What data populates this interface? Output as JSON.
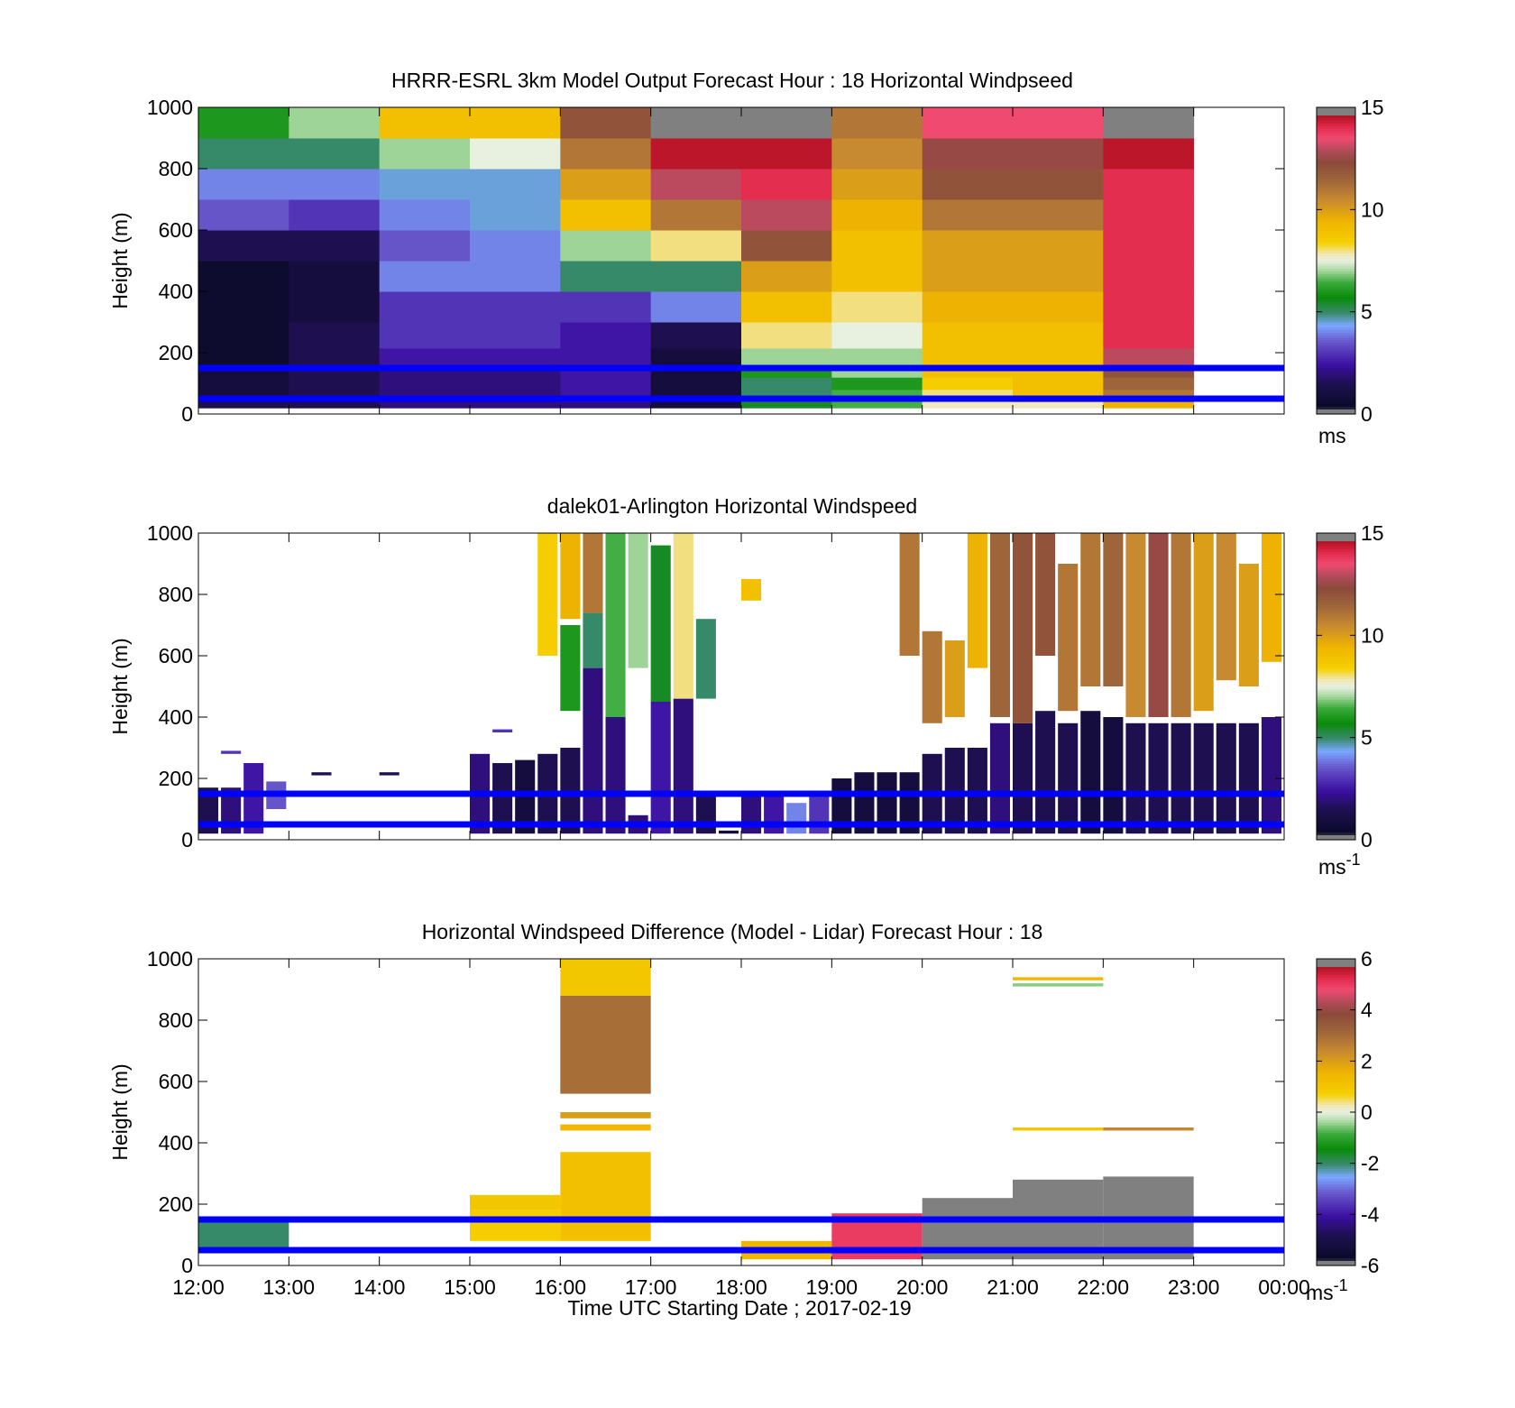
{
  "figure": {
    "xlabel": "Time UTC  Starting Date ; 2017-02-19",
    "x_tick_labels": [
      "12:00",
      "13:00",
      "14:00",
      "15:00",
      "16:00",
      "17:00",
      "18:00",
      "19:00",
      "20:00",
      "21:00",
      "22:00",
      "23:00",
      "00:00"
    ]
  },
  "colors": {
    "reference_lines": "#0000ff"
  },
  "chart_data": [
    {
      "type": "heatmap",
      "title": "HRRR-ESRL 3km Model Output   Forecast Hour : 18 Horizontal Windpseed",
      "ylabel": "Height (m)",
      "ylim": [
        0,
        1000
      ],
      "y_ticks": [
        0,
        200,
        400,
        600,
        800,
        1000
      ],
      "colorbar": {
        "range": [
          0,
          15
        ],
        "ticks": [
          0,
          5,
          10,
          15
        ],
        "unit": "ms"
      },
      "reference_lines_m": [
        50,
        150
      ],
      "hours": [
        "12:00",
        "13:00",
        "14:00",
        "15:00",
        "16:00",
        "17:00",
        "18:00",
        "19:00",
        "20:00",
        "21:00",
        "22:00"
      ],
      "heights_m": [
        20,
        60,
        100,
        140,
        180,
        250,
        350,
        450,
        550,
        650,
        750,
        850,
        950
      ],
      "values_ms": [
        [
          1.5,
          1.5,
          2.0,
          2.0,
          2.0,
          1.0,
          5.5,
          6.5,
          7.8,
          7.8,
          9.5
        ],
        [
          1.0,
          1.5,
          2.0,
          2.0,
          2.5,
          1.0,
          5.0,
          6.5,
          8.0,
          9.0,
          11.0
        ],
        [
          1.0,
          1.5,
          2.0,
          2.0,
          2.5,
          1.0,
          5.0,
          6.0,
          8.5,
          9.0,
          11.5
        ],
        [
          1.0,
          1.5,
          2.0,
          2.0,
          2.5,
          1.0,
          6.0,
          7.0,
          9.0,
          9.0,
          12.0
        ],
        [
          0.5,
          1.5,
          2.5,
          2.5,
          2.5,
          1.0,
          7.0,
          7.0,
          9.0,
          9.0,
          13.0
        ],
        [
          0.5,
          1.5,
          3.0,
          3.0,
          2.5,
          1.5,
          8.0,
          7.5,
          9.0,
          9.0,
          14.0
        ],
        [
          0.5,
          1.0,
          3.0,
          3.0,
          3.0,
          4.0,
          9.0,
          8.0,
          9.5,
          9.5,
          14.0
        ],
        [
          0.5,
          1.0,
          4.0,
          4.0,
          5.0,
          5.0,
          10.0,
          9.0,
          10.0,
          10.0,
          14.0
        ],
        [
          1.5,
          1.5,
          3.5,
          4.0,
          7.0,
          8.0,
          12.0,
          9.0,
          10.0,
          10.0,
          14.0
        ],
        [
          3.5,
          3.0,
          4.0,
          4.5,
          9.0,
          11.0,
          13.0,
          9.5,
          11.0,
          11.0,
          14.0
        ],
        [
          4.0,
          4.0,
          4.5,
          4.5,
          10.0,
          13.0,
          14.0,
          10.0,
          12.0,
          12.0,
          14.0
        ],
        [
          5.0,
          5.0,
          7.0,
          7.5,
          11.0,
          14.5,
          14.5,
          10.5,
          12.5,
          12.5,
          14.5
        ],
        [
          6.0,
          7.0,
          9.0,
          9.0,
          12.0,
          15.0,
          15.0,
          11.0,
          13.5,
          13.5,
          14.8
        ]
      ]
    },
    {
      "type": "heatmap",
      "title": "dalek01-Arlington  Horizontal Windspeed",
      "ylabel": "Height (m)",
      "ylim": [
        0,
        1000
      ],
      "y_ticks": [
        0,
        200,
        400,
        600,
        800,
        1000
      ],
      "colorbar": {
        "range": [
          0,
          15
        ],
        "ticks": [
          0,
          5,
          10,
          15
        ],
        "unit": "ms-1"
      },
      "reference_lines_m": [
        50,
        150
      ],
      "columns": [
        {
          "t": "12:00",
          "segments": [
            [
              20,
              170,
              1.5
            ]
          ]
        },
        {
          "t": "12:15",
          "segments": [
            [
              20,
              170,
              2.0
            ],
            [
              280,
              290,
              3.0
            ]
          ]
        },
        {
          "t": "12:30",
          "segments": [
            [
              20,
              250,
              2.5
            ]
          ]
        },
        {
          "t": "12:45",
          "segments": [
            [
              100,
              190,
              3.5
            ]
          ]
        },
        {
          "t": "13:15",
          "segments": [
            [
              210,
              220,
              1.5
            ]
          ]
        },
        {
          "t": "14:00",
          "segments": [
            [
              210,
              220,
              1.5
            ]
          ]
        },
        {
          "t": "15:00",
          "segments": [
            [
              20,
              280,
              2.0
            ]
          ]
        },
        {
          "t": "15:15",
          "segments": [
            [
              20,
              250,
              1.5
            ],
            [
              350,
              360,
              3.0
            ]
          ]
        },
        {
          "t": "15:30",
          "segments": [
            [
              20,
              260,
              1.0
            ]
          ]
        },
        {
          "t": "15:45",
          "segments": [
            [
              20,
              280,
              1.5
            ],
            [
              600,
              1000,
              8.5
            ]
          ]
        },
        {
          "t": "16:00",
          "segments": [
            [
              20,
              300,
              1.5
            ],
            [
              420,
              700,
              6.0
            ],
            [
              720,
              1000,
              9.5
            ]
          ]
        },
        {
          "t": "16:15",
          "segments": [
            [
              20,
              560,
              2.0
            ],
            [
              560,
              740,
              5.0
            ],
            [
              740,
              1000,
              11.0
            ]
          ]
        },
        {
          "t": "16:30",
          "segments": [
            [
              20,
              400,
              2.0
            ],
            [
              400,
              1000,
              6.5
            ]
          ]
        },
        {
          "t": "16:45",
          "segments": [
            [
              20,
              80,
              2.0
            ],
            [
              560,
              1000,
              7.0
            ]
          ]
        },
        {
          "t": "17:00",
          "segments": [
            [
              20,
              450,
              2.5
            ],
            [
              450,
              960,
              5.5
            ]
          ]
        },
        {
          "t": "17:15",
          "segments": [
            [
              20,
              460,
              2.0
            ],
            [
              460,
              1000,
              8.0
            ]
          ]
        },
        {
          "t": "17:30",
          "segments": [
            [
              20,
              150,
              1.5
            ],
            [
              460,
              720,
              5.0
            ]
          ]
        },
        {
          "t": "17:45",
          "segments": [
            [
              20,
              30,
              1.0
            ]
          ]
        },
        {
          "t": "18:00",
          "segments": [
            [
              20,
              160,
              2.0
            ],
            [
              780,
              850,
              9.0
            ]
          ]
        },
        {
          "t": "18:15",
          "segments": [
            [
              20,
              160,
              2.5
            ]
          ]
        },
        {
          "t": "18:30",
          "segments": [
            [
              20,
              120,
              4.0
            ]
          ]
        },
        {
          "t": "18:45",
          "segments": [
            [
              20,
              160,
              3.0
            ]
          ]
        },
        {
          "t": "19:00",
          "segments": [
            [
              20,
              200,
              1.0
            ]
          ]
        },
        {
          "t": "19:15",
          "segments": [
            [
              20,
              220,
              1.0
            ]
          ]
        },
        {
          "t": "19:30",
          "segments": [
            [
              20,
              220,
              1.0
            ]
          ]
        },
        {
          "t": "19:45",
          "segments": [
            [
              20,
              220,
              1.0
            ],
            [
              600,
              1000,
              11.0
            ]
          ]
        },
        {
          "t": "20:00",
          "segments": [
            [
              20,
              280,
              1.5
            ],
            [
              380,
              680,
              11.0
            ]
          ]
        },
        {
          "t": "20:15",
          "segments": [
            [
              20,
              300,
              1.5
            ],
            [
              400,
              650,
              10.0
            ]
          ]
        },
        {
          "t": "20:30",
          "segments": [
            [
              20,
              300,
              1.5
            ],
            [
              560,
              1000,
              9.5
            ]
          ]
        },
        {
          "t": "20:45",
          "segments": [
            [
              20,
              380,
              2.0
            ],
            [
              400,
              1000,
              11.5
            ]
          ]
        },
        {
          "t": "21:00",
          "segments": [
            [
              20,
              380,
              1.5
            ],
            [
              380,
              1000,
              12.0
            ]
          ]
        },
        {
          "t": "21:15",
          "segments": [
            [
              20,
              420,
              1.5
            ],
            [
              600,
              1000,
              12.0
            ]
          ]
        },
        {
          "t": "21:30",
          "segments": [
            [
              20,
              380,
              1.5
            ],
            [
              420,
              900,
              11.0
            ]
          ]
        },
        {
          "t": "21:45",
          "segments": [
            [
              20,
              420,
              1.0
            ],
            [
              500,
              1000,
              11.0
            ]
          ]
        },
        {
          "t": "22:00",
          "segments": [
            [
              20,
              400,
              1.0
            ],
            [
              500,
              1000,
              11.5
            ]
          ]
        },
        {
          "t": "22:15",
          "segments": [
            [
              20,
              380,
              1.5
            ],
            [
              400,
              1000,
              10.5
            ]
          ]
        },
        {
          "t": "22:30",
          "segments": [
            [
              20,
              380,
              1.5
            ],
            [
              400,
              1000,
              12.5
            ]
          ]
        },
        {
          "t": "22:45",
          "segments": [
            [
              20,
              380,
              1.5
            ],
            [
              400,
              1000,
              11.0
            ]
          ]
        },
        {
          "t": "23:00",
          "segments": [
            [
              20,
              380,
              1.5
            ],
            [
              420,
              1000,
              10.0
            ]
          ]
        },
        {
          "t": "23:15",
          "segments": [
            [
              20,
              380,
              1.5
            ],
            [
              520,
              1000,
              10.5
            ]
          ]
        },
        {
          "t": "23:30",
          "segments": [
            [
              20,
              380,
              1.5
            ],
            [
              500,
              900,
              10.0
            ]
          ]
        },
        {
          "t": "23:45",
          "segments": [
            [
              20,
              400,
              2.0
            ],
            [
              580,
              1000,
              9.5
            ]
          ]
        }
      ]
    },
    {
      "type": "heatmap",
      "title": "Horizontal Windspeed Difference (Model - Lidar) Forecast Hour : 18",
      "ylabel": "Height (m)",
      "ylim": [
        0,
        1000
      ],
      "y_ticks": [
        0,
        200,
        400,
        600,
        800,
        1000
      ],
      "colorbar": {
        "range": [
          -6,
          6
        ],
        "ticks": [
          -6,
          -4,
          -2,
          0,
          2,
          4,
          6
        ],
        "unit": "ms-1"
      },
      "reference_lines_m": [
        50,
        150
      ],
      "cells": [
        {
          "t0": "12:00",
          "t1": "13:00",
          "y0": 40,
          "y1": 140,
          "v": -2.0
        },
        {
          "t0": "15:00",
          "t1": "16:00",
          "y0": 80,
          "y1": 180,
          "v": 0.8
        },
        {
          "t0": "15:00",
          "t1": "16:00",
          "y0": 180,
          "y1": 230,
          "v": 1.0
        },
        {
          "t0": "16:00",
          "t1": "17:00",
          "y0": 80,
          "y1": 370,
          "v": 1.2
        },
        {
          "t0": "16:00",
          "t1": "17:00",
          "y0": 440,
          "y1": 460,
          "v": 1.5
        },
        {
          "t0": "16:00",
          "t1": "17:00",
          "y0": 480,
          "y1": 500,
          "v": 2.0
        },
        {
          "t0": "16:00",
          "t1": "17:00",
          "y0": 560,
          "y1": 880,
          "v": 3.0
        },
        {
          "t0": "16:00",
          "t1": "17:00",
          "y0": 880,
          "y1": 1000,
          "v": 1.0
        },
        {
          "t0": "18:00",
          "t1": "19:00",
          "y0": 20,
          "y1": 80,
          "v": 1.5
        },
        {
          "t0": "19:00",
          "t1": "20:00",
          "y0": 20,
          "y1": 170,
          "v": 5.0
        },
        {
          "t0": "20:00",
          "t1": "21:00",
          "y0": 20,
          "y1": 220,
          "v": 7.0
        },
        {
          "t0": "21:00",
          "t1": "22:00",
          "y0": 20,
          "y1": 280,
          "v": 7.0
        },
        {
          "t0": "21:00",
          "t1": "22:00",
          "y0": 440,
          "y1": 450,
          "v": 1.0
        },
        {
          "t0": "21:00",
          "t1": "22:00",
          "y0": 910,
          "y1": 920,
          "v": -0.5
        },
        {
          "t0": "21:00",
          "t1": "22:00",
          "y0": 930,
          "y1": 940,
          "v": 1.5
        },
        {
          "t0": "22:00",
          "t1": "23:00",
          "y0": 20,
          "y1": 290,
          "v": 7.0
        },
        {
          "t0": "22:00",
          "t1": "23:00",
          "y0": 440,
          "y1": 450,
          "v": 2.5
        }
      ]
    }
  ]
}
